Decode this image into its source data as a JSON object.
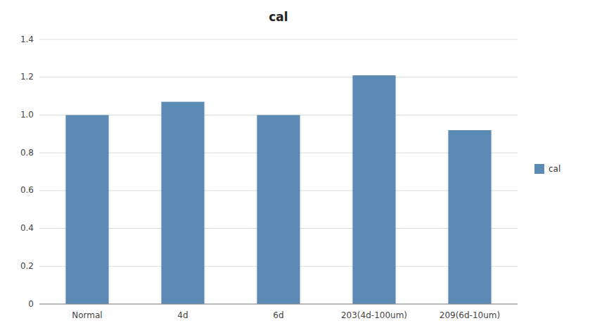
{
  "chart_data": {
    "type": "bar",
    "title": "cal",
    "categories": [
      "Normal",
      "4d",
      "6d",
      "203(4d-100um)",
      "209(6d-10um)"
    ],
    "series": [
      {
        "name": "cal",
        "color": "#5b8ab5",
        "values": [
          1.0,
          1.07,
          1.0,
          1.21,
          0.92
        ]
      }
    ],
    "ylim": [
      0,
      1.4
    ],
    "yticks": [
      0,
      0.2,
      0.4,
      0.6,
      0.8,
      {
        "value": 1.0,
        "label": "1.0"
      },
      1.2,
      1.4
    ],
    "grid": true,
    "legend": "right"
  }
}
